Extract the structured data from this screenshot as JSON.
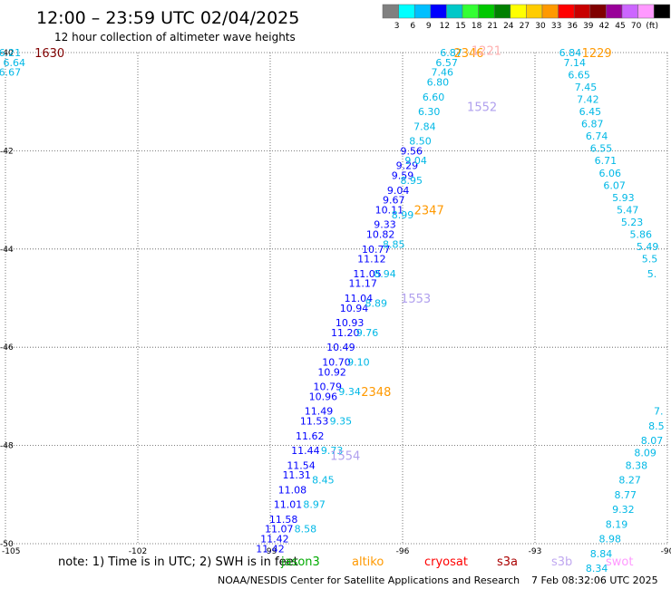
{
  "title": "12:00 – 23:59 UTC 02/04/2025",
  "subtitle": "12 hour collection of altimeter wave heights",
  "color_scale": {
    "colors": [
      "#808080",
      "#00ffff",
      "#00bfff",
      "#0000ff",
      "#00c8c8",
      "#33ff33",
      "#00c800",
      "#008000",
      "#ffff00",
      "#ffcc00",
      "#ff9900",
      "#ff0000",
      "#c80000",
      "#800000",
      "#990099",
      "#cc66ff",
      "#ff99ff",
      "#000000"
    ],
    "labels": [
      "3",
      "6",
      "9",
      "12",
      "15",
      "18",
      "21",
      "24",
      "27",
      "30",
      "33",
      "36",
      "39",
      "42",
      "45",
      "70",
      "(ft)"
    ]
  },
  "chart_data": {
    "type": "scatter",
    "title": "12:00 – 23:59 UTC 02/04/2025",
    "subtitle": "12 hour collection of altimeter wave heights",
    "xlim": [
      -105,
      -90
    ],
    "ylim": [
      -50,
      -40
    ],
    "x_ticks": [
      "-105",
      "-102",
      "-99",
      "-96",
      "-93",
      "-90"
    ],
    "y_ticks": [
      "-40",
      "-42",
      "-44",
      "-46",
      "-48",
      "-50"
    ],
    "grid": true,
    "series": [
      {
        "name": "track-left-blue",
        "color": "#0000ff",
        "points": [
          [
            -95.8,
            -42.0,
            "9.56"
          ],
          [
            -95.9,
            -42.3,
            "9.29"
          ],
          [
            -96.0,
            -42.5,
            "9.59"
          ],
          [
            -96.1,
            -42.8,
            "9.04"
          ],
          [
            -96.2,
            -43.0,
            "9.67"
          ],
          [
            -96.3,
            -43.2,
            "10.11"
          ],
          [
            -96.4,
            -43.5,
            "9.33"
          ],
          [
            -96.5,
            -43.7,
            "10.82"
          ],
          [
            -96.6,
            -44.0,
            "10.77"
          ],
          [
            -96.7,
            -44.2,
            "11.12"
          ],
          [
            -96.8,
            -44.5,
            "11.05"
          ],
          [
            -96.9,
            -44.7,
            "11.17"
          ],
          [
            -97.0,
            -45.0,
            "11.04"
          ],
          [
            -97.1,
            -45.2,
            "10.94"
          ],
          [
            -97.2,
            -45.5,
            "10.93"
          ],
          [
            -97.3,
            -45.7,
            "11.20"
          ],
          [
            -97.4,
            -46.0,
            "10.49"
          ],
          [
            -97.5,
            -46.3,
            "10.70"
          ],
          [
            -97.6,
            -46.5,
            "10.92"
          ],
          [
            -97.7,
            -46.8,
            "10.79"
          ],
          [
            -97.8,
            -47.0,
            "10.96"
          ],
          [
            -97.9,
            -47.3,
            "11.49"
          ],
          [
            -98.0,
            -47.5,
            "11.53"
          ],
          [
            -98.1,
            -47.8,
            "11.62"
          ],
          [
            -98.2,
            -48.1,
            "11.44"
          ],
          [
            -98.3,
            -48.4,
            "11.54"
          ],
          [
            -98.4,
            -48.6,
            "11.31"
          ],
          [
            -98.5,
            -48.9,
            "11.08"
          ],
          [
            -98.6,
            -49.2,
            "11.01"
          ],
          [
            -98.7,
            -49.5,
            "11.58"
          ],
          [
            -98.8,
            -49.7,
            "11.07"
          ],
          [
            -98.9,
            -49.9,
            "11.42"
          ],
          [
            -99.0,
            -50.1,
            "11.42"
          ]
        ]
      },
      {
        "name": "track-left-cyan",
        "color": "#00b8e6",
        "points": [
          [
            -94.9,
            -40.0,
            "6.87"
          ],
          [
            -95.0,
            -40.2,
            "6.57"
          ],
          [
            -95.1,
            -40.4,
            "7.46"
          ],
          [
            -95.2,
            -40.6,
            "6.80"
          ],
          [
            -95.3,
            -40.9,
            "6.60"
          ],
          [
            -95.4,
            -41.2,
            "6.30"
          ],
          [
            -95.5,
            -41.5,
            "7.84"
          ],
          [
            -95.6,
            -41.8,
            "8.50"
          ],
          [
            -95.7,
            -42.2,
            "9.04"
          ],
          [
            -95.8,
            -42.6,
            "8.95"
          ],
          [
            -96.0,
            -43.3,
            "8.99"
          ],
          [
            -96.2,
            -43.9,
            "8.85"
          ],
          [
            -96.4,
            -44.5,
            "8.94"
          ],
          [
            -96.6,
            -45.1,
            "8.89"
          ],
          [
            -96.8,
            -45.7,
            "9.76"
          ],
          [
            -97.0,
            -46.3,
            "9.10"
          ],
          [
            -97.2,
            -46.9,
            "9.34"
          ],
          [
            -97.4,
            -47.5,
            "9.35"
          ],
          [
            -97.6,
            -48.1,
            "9.73"
          ],
          [
            -97.8,
            -48.7,
            "8.45"
          ],
          [
            -98.0,
            -49.2,
            "8.97"
          ],
          [
            -98.2,
            -49.7,
            "8.58"
          ]
        ]
      },
      {
        "name": "track-right-cyan",
        "color": "#00b8e6",
        "points": [
          [
            -92.2,
            -40.0,
            "6.84"
          ],
          [
            -92.1,
            -40.2,
            "7.14"
          ],
          [
            -92.0,
            -40.45,
            "6.65"
          ],
          [
            -91.85,
            -40.7,
            "7.45"
          ],
          [
            -91.8,
            -40.95,
            "7.42"
          ],
          [
            -91.75,
            -41.2,
            "6.45"
          ],
          [
            -91.7,
            -41.45,
            "6.87"
          ],
          [
            -91.6,
            -41.7,
            "6.74"
          ],
          [
            -91.5,
            -41.95,
            "6.55"
          ],
          [
            -91.4,
            -42.2,
            "6.71"
          ],
          [
            -91.3,
            -42.45,
            "6.06"
          ],
          [
            -91.2,
            -42.7,
            "6.07"
          ],
          [
            -91.0,
            -42.95,
            "5.93"
          ],
          [
            -90.9,
            -43.2,
            "5.47"
          ],
          [
            -90.8,
            -43.45,
            "5.23"
          ],
          [
            -90.6,
            -43.7,
            "5.86"
          ],
          [
            -90.45,
            -43.95,
            "5.49"
          ],
          [
            -90.4,
            -44.2,
            "5.5"
          ],
          [
            -90.35,
            -44.5,
            "5."
          ],
          [
            -90.2,
            -47.3,
            "7."
          ],
          [
            -90.25,
            -47.6,
            "8.5"
          ],
          [
            -90.35,
            -47.9,
            "8.07"
          ],
          [
            -90.5,
            -48.15,
            "8.09"
          ],
          [
            -90.7,
            -48.4,
            "8.38"
          ],
          [
            -90.85,
            -48.7,
            "8.27"
          ],
          [
            -90.95,
            -49.0,
            "8.77"
          ],
          [
            -91.0,
            -49.3,
            "9.32"
          ],
          [
            -91.15,
            -49.6,
            "8.19"
          ],
          [
            -91.3,
            -49.9,
            "8.98"
          ],
          [
            -91.5,
            -50.2,
            "8.84"
          ],
          [
            -91.6,
            -50.5,
            "8.34"
          ]
        ]
      },
      {
        "name": "corner-cyan",
        "color": "#00b8e6",
        "points": [
          [
            -104.9,
            -40.0,
            "6.21"
          ],
          [
            -104.8,
            -40.2,
            "6.64"
          ],
          [
            -104.9,
            -40.4,
            "6.67"
          ]
        ]
      }
    ],
    "pass_labels": [
      {
        "text": "1630",
        "x": -104.0,
        "y": -40.0,
        "color": "#800000"
      },
      {
        "text": "2346",
        "x": -94.5,
        "y": -40.0,
        "color": "#ff9900"
      },
      {
        "text": "1221",
        "x": -94.1,
        "y": -39.95,
        "color": "#ffb0b0"
      },
      {
        "text": "1552",
        "x": -94.2,
        "y": -41.1,
        "color": "#b0a0ee"
      },
      {
        "text": "2347",
        "x": -95.4,
        "y": -43.2,
        "color": "#ff9900"
      },
      {
        "text": "1553",
        "x": -95.7,
        "y": -45.0,
        "color": "#b0a0ee"
      },
      {
        "text": "2348",
        "x": -96.6,
        "y": -46.9,
        "color": "#ff9900"
      },
      {
        "text": "1554",
        "x": -97.3,
        "y": -48.2,
        "color": "#b0a0ee"
      },
      {
        "text": "1229",
        "x": -91.6,
        "y": -40.0,
        "color": "#ff9900"
      }
    ]
  },
  "footer": {
    "note": "note:  1) Time is in UTC; 2) SWH is in feet",
    "legend": [
      {
        "label": "jason3",
        "color": "#00aa00"
      },
      {
        "label": "altiko",
        "color": "#ff9900"
      },
      {
        "label": "cryosat",
        "color": "#ff0000"
      },
      {
        "label": "s3a",
        "color": "#aa0000"
      },
      {
        "label": "s3b",
        "color": "#c0a8f0"
      },
      {
        "label": "swot",
        "color": "#ff99ff"
      }
    ],
    "credit": "NOAA/NESDIS Center for Satellite Applications and Research",
    "timestamp": "7 Feb 08:32:06 UTC 2025"
  }
}
